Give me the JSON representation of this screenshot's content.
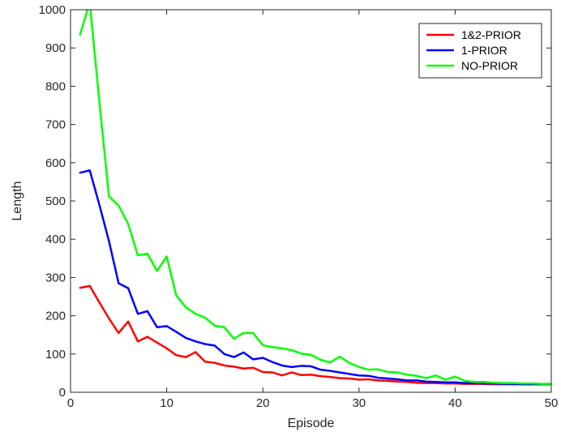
{
  "chart_data": {
    "type": "line",
    "xlabel": "Episode",
    "ylabel": "Length",
    "xlim": [
      0,
      50
    ],
    "ylim": [
      0,
      1000
    ],
    "xticks": [
      0,
      10,
      20,
      30,
      40,
      50
    ],
    "yticks": [
      0,
      100,
      200,
      300,
      400,
      500,
      600,
      700,
      800,
      900,
      1000
    ],
    "grid": false,
    "legend_position": "top-right",
    "x": [
      1,
      2,
      3,
      4,
      5,
      6,
      7,
      8,
      9,
      10,
      11,
      12,
      13,
      14,
      15,
      16,
      17,
      18,
      19,
      20,
      21,
      22,
      23,
      24,
      25,
      26,
      27,
      28,
      29,
      30,
      31,
      32,
      33,
      34,
      35,
      36,
      37,
      38,
      39,
      40,
      41,
      42,
      43,
      44,
      45,
      46,
      47,
      48,
      49,
      50
    ],
    "series": [
      {
        "name": "1&2-PRIOR",
        "color": "#ff0000",
        "values": [
          273,
          278,
          235,
          193,
          155,
          185,
          133,
          145,
          130,
          115,
          97,
          92,
          105,
          80,
          77,
          70,
          67,
          62,
          64,
          53,
          52,
          44,
          52,
          45,
          46,
          42,
          40,
          37,
          36,
          33,
          34,
          31,
          30,
          28,
          27,
          25,
          24,
          24,
          23,
          23,
          22,
          22,
          22,
          21,
          21,
          21,
          21,
          21,
          21,
          21
        ]
      },
      {
        "name": "1-PRIOR",
        "color": "#0000ff",
        "values": [
          574,
          580,
          490,
          395,
          285,
          272,
          205,
          212,
          170,
          173,
          158,
          142,
          133,
          126,
          122,
          100,
          92,
          104,
          86,
          90,
          79,
          70,
          66,
          69,
          68,
          59,
          56,
          52,
          48,
          44,
          43,
          38,
          36,
          34,
          31,
          31,
          28,
          27,
          26,
          26,
          24,
          24,
          23,
          23,
          22,
          22,
          21,
          21,
          21,
          21
        ]
      },
      {
        "name": "NO-PRIOR",
        "color": "#00ff00",
        "values": [
          935,
          1020,
          760,
          512,
          488,
          440,
          358,
          362,
          317,
          355,
          253,
          222,
          205,
          195,
          174,
          170,
          140,
          155,
          155,
          123,
          118,
          115,
          110,
          101,
          98,
          85,
          78,
          93,
          77,
          66,
          59,
          60,
          53,
          52,
          46,
          43,
          37,
          44,
          33,
          41,
          30,
          27,
          27,
          25,
          24,
          24,
          23,
          23,
          22,
          22
        ]
      }
    ]
  }
}
